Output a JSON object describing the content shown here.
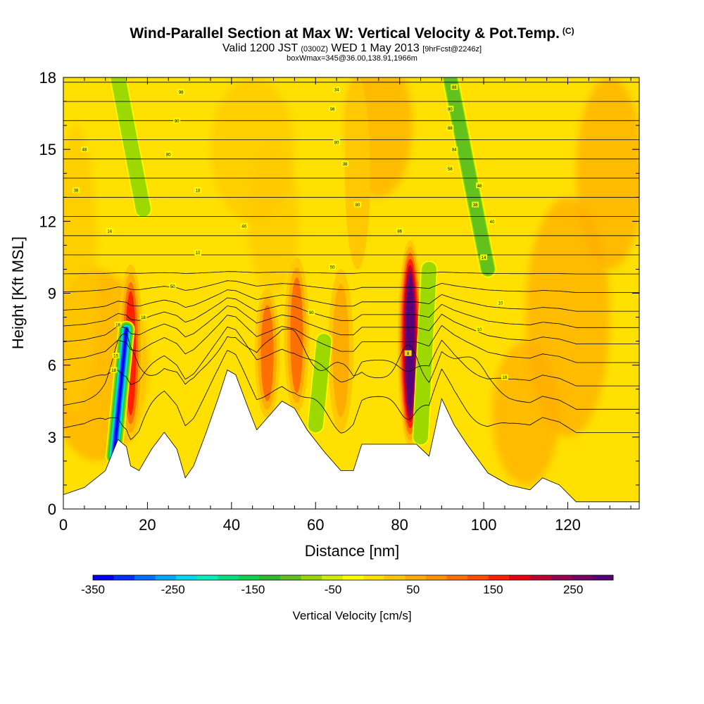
{
  "header": {
    "title": "Wind-Parallel Section at Max W: Vertical Velocity & Pot.Temp.",
    "copyright": "(C)",
    "valid_prefix": "Valid 1200 JST",
    "valid_utc": "(0300Z)",
    "valid_date": "WED 1 May 2013",
    "forecast": "[9hrFcst@2246z]",
    "box_info": "boxWmax=345@36.00,138.91,1966m"
  },
  "chart_data": {
    "type": "heatmap",
    "xlabel": "Distance [nm]",
    "ylabel": "Height [Kft MSL]",
    "xlim": [
      0,
      137
    ],
    "ylim": [
      0,
      18
    ],
    "x_ticks": [
      0,
      20,
      40,
      60,
      80,
      100,
      120
    ],
    "y_ticks": [
      0,
      3,
      6,
      9,
      12,
      15,
      18
    ],
    "colorbar": {
      "label": "Vertical Velocity [cm/s]",
      "min": -350,
      "max": 300,
      "tick_values": [
        -350,
        -250,
        -150,
        -50,
        50,
        150,
        250
      ],
      "colors": [
        "#0000f0",
        "#0030ff",
        "#0070ff",
        "#00a8ff",
        "#00d8f0",
        "#00f0c0",
        "#00e080",
        "#10d050",
        "#30b830",
        "#60c020",
        "#98d800",
        "#d0ec00",
        "#ffff00",
        "#ffe000",
        "#ffc800",
        "#ffac00",
        "#ff9000",
        "#ff7000",
        "#ff4c00",
        "#ff2000",
        "#e80010",
        "#c00030",
        "#980050",
        "#780060",
        "#58007a"
      ]
    },
    "updrafts": [
      {
        "x": 16,
        "ymin": 2.8,
        "ymax": 10.2,
        "w": 170
      },
      {
        "x": 48.5,
        "ymin": 3.8,
        "ymax": 9.2,
        "w": 110
      },
      {
        "x": 55.5,
        "ymin": 4.0,
        "ymax": 10.5,
        "w": 120
      },
      {
        "x": 66,
        "ymin": 3.2,
        "ymax": 10.0,
        "w": 80
      },
      {
        "x": 82.5,
        "ymin": 2.6,
        "ymax": 11.2,
        "w": 300
      },
      {
        "x": 70,
        "ymin": 10.0,
        "ymax": 18.0,
        "w": 50
      }
    ],
    "downdrafts": [
      {
        "x0": 12,
        "y0": 2.2,
        "x1": 15,
        "y1": 7.5,
        "w": -350
      },
      {
        "x0": 13,
        "y0": 18.0,
        "x1": 19,
        "y1": 12.5,
        "w": -90
      },
      {
        "x0": 92,
        "y0": 18.0,
        "x1": 101,
        "y1": 10.0,
        "w": -100
      },
      {
        "x0": 85,
        "y0": 3.0,
        "x1": 87,
        "y1": 10.0,
        "w": -70
      },
      {
        "x0": 60,
        "y0": 3.5,
        "x1": 62,
        "y1": 7.0,
        "w": -80
      }
    ],
    "terrain": [
      {
        "x": 0,
        "y": 0.6
      },
      {
        "x": 5,
        "y": 0.9
      },
      {
        "x": 10,
        "y": 1.6
      },
      {
        "x": 13,
        "y": 2.9
      },
      {
        "x": 15,
        "y": 2.6
      },
      {
        "x": 16,
        "y": 1.8
      },
      {
        "x": 18,
        "y": 1.6
      },
      {
        "x": 21,
        "y": 2.5
      },
      {
        "x": 24,
        "y": 3.2
      },
      {
        "x": 27,
        "y": 2.5
      },
      {
        "x": 29,
        "y": 1.3
      },
      {
        "x": 31,
        "y": 1.8
      },
      {
        "x": 34,
        "y": 3.2
      },
      {
        "x": 37,
        "y": 4.7
      },
      {
        "x": 39,
        "y": 5.8
      },
      {
        "x": 41,
        "y": 5.6
      },
      {
        "x": 44,
        "y": 4.2
      },
      {
        "x": 46,
        "y": 3.3
      },
      {
        "x": 49,
        "y": 3.9
      },
      {
        "x": 52,
        "y": 4.5
      },
      {
        "x": 55,
        "y": 4.2
      },
      {
        "x": 58,
        "y": 3.3
      },
      {
        "x": 62,
        "y": 2.4
      },
      {
        "x": 66,
        "y": 1.6
      },
      {
        "x": 69,
        "y": 1.6
      },
      {
        "x": 71,
        "y": 2.7
      },
      {
        "x": 75,
        "y": 2.7
      },
      {
        "x": 79,
        "y": 2.7
      },
      {
        "x": 84,
        "y": 2.7
      },
      {
        "x": 87,
        "y": 2.2
      },
      {
        "x": 90,
        "y": 4.6
      },
      {
        "x": 93,
        "y": 3.5
      },
      {
        "x": 96,
        "y": 2.7
      },
      {
        "x": 101,
        "y": 1.5
      },
      {
        "x": 106,
        "y": 1.0
      },
      {
        "x": 111,
        "y": 0.8
      },
      {
        "x": 114,
        "y": 1.3
      },
      {
        "x": 118,
        "y": 1.0
      },
      {
        "x": 122,
        "y": 0.3
      },
      {
        "x": 137,
        "y": 0.3
      }
    ],
    "theta_contour_heights": [
      3.0,
      4.0,
      5.0,
      6.0,
      6.8,
      7.5,
      8.2,
      9.0,
      9.8,
      10.6,
      11.4,
      12.2,
      13.0,
      13.8,
      14.6,
      15.4,
      16.2,
      17.0,
      17.8
    ],
    "contour_labels": [
      {
        "x": 5,
        "y": 15.0,
        "text": "48"
      },
      {
        "x": 3,
        "y": 13.3,
        "text": "38"
      },
      {
        "x": 11,
        "y": 11.6,
        "text": "14"
      },
      {
        "x": 28,
        "y": 17.4,
        "text": "98"
      },
      {
        "x": 27,
        "y": 16.2,
        "text": "90"
      },
      {
        "x": 25,
        "y": 14.8,
        "text": "80"
      },
      {
        "x": 32,
        "y": 13.3,
        "text": "18"
      },
      {
        "x": 43,
        "y": 11.8,
        "text": "46"
      },
      {
        "x": 32,
        "y": 10.7,
        "text": "10"
      },
      {
        "x": 26,
        "y": 9.3,
        "text": "50"
      },
      {
        "x": 19,
        "y": 8.0,
        "text": "18"
      },
      {
        "x": 13,
        "y": 7.7,
        "text": "16"
      },
      {
        "x": 12.5,
        "y": 6.4,
        "text": "15"
      },
      {
        "x": 12,
        "y": 5.8,
        "text": "18"
      },
      {
        "x": 65,
        "y": 17.5,
        "text": "34"
      },
      {
        "x": 64,
        "y": 16.7,
        "text": "96"
      },
      {
        "x": 65,
        "y": 15.3,
        "text": "80"
      },
      {
        "x": 67,
        "y": 14.4,
        "text": "38"
      },
      {
        "x": 70,
        "y": 12.7,
        "text": "80"
      },
      {
        "x": 64,
        "y": 10.1,
        "text": "50"
      },
      {
        "x": 59,
        "y": 8.2,
        "text": "90"
      },
      {
        "x": 80,
        "y": 11.6,
        "text": "86"
      },
      {
        "x": 82,
        "y": 6.5,
        "text": "8"
      },
      {
        "x": 93,
        "y": 17.6,
        "text": "88"
      },
      {
        "x": 92,
        "y": 16.7,
        "text": "80"
      },
      {
        "x": 92,
        "y": 15.9,
        "text": "88"
      },
      {
        "x": 93,
        "y": 15.0,
        "text": "84"
      },
      {
        "x": 92,
        "y": 14.2,
        "text": "58"
      },
      {
        "x": 99,
        "y": 13.5,
        "text": "48"
      },
      {
        "x": 98,
        "y": 12.7,
        "text": "38"
      },
      {
        "x": 102,
        "y": 12.0,
        "text": "40"
      },
      {
        "x": 100,
        "y": 10.5,
        "text": "14"
      },
      {
        "x": 104,
        "y": 8.6,
        "text": "10"
      },
      {
        "x": 99,
        "y": 7.5,
        "text": "10"
      },
      {
        "x": 105,
        "y": 5.5,
        "text": "18"
      }
    ]
  }
}
